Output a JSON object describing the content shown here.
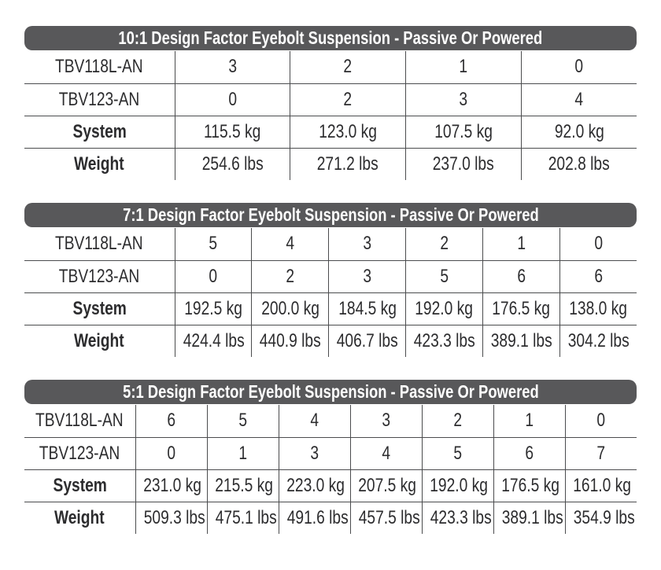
{
  "page": {
    "header_bar_color": "#58585a",
    "header_text_color": "#ffffff",
    "grid_line_color": "#4b4c4e",
    "text_color": "#2c2c2e"
  },
  "tables": [
    {
      "title": "10:1 Design Factor Eyebolt Suspension - Passive Or Powered",
      "rows": [
        {
          "label": "TBV118L-AN",
          "values": [
            "3",
            "2",
            "1",
            "0"
          ]
        },
        {
          "label": "TBV123-AN",
          "values": [
            "0",
            "2",
            "3",
            "4"
          ]
        },
        {
          "label": "System",
          "values": [
            "115.5 kg",
            "123.0 kg",
            "107.5 kg",
            "92.0 kg"
          ]
        },
        {
          "label": "Weight",
          "values": [
            "254.6 lbs",
            "271.2 lbs",
            "237.0 lbs",
            "202.8 lbs"
          ]
        }
      ]
    },
    {
      "title": "7:1 Design Factor Eyebolt Suspension - Passive Or Powered",
      "rows": [
        {
          "label": "TBV118L-AN",
          "values": [
            "5",
            "4",
            "3",
            "2",
            "1",
            "0"
          ]
        },
        {
          "label": "TBV123-AN",
          "values": [
            "0",
            "2",
            "3",
            "5",
            "6",
            "6"
          ]
        },
        {
          "label": "System",
          "values": [
            "192.5 kg",
            "200.0 kg",
            "184.5 kg",
            "192.0 kg",
            "176.5 kg",
            "138.0 kg"
          ]
        },
        {
          "label": "Weight",
          "values": [
            "424.4 lbs",
            "440.9 lbs",
            "406.7 lbs",
            "423.3 lbs",
            "389.1 lbs",
            "304.2 lbs"
          ]
        }
      ]
    },
    {
      "title": "5:1 Design Factor Eyebolt Suspension - Passive Or Powered",
      "rows": [
        {
          "label": "TBV118L-AN",
          "values": [
            "6",
            "5",
            "4",
            "3",
            "2",
            "1",
            "0"
          ]
        },
        {
          "label": "TBV123-AN",
          "values": [
            "0",
            "1",
            "3",
            "4",
            "5",
            "6",
            "7"
          ]
        },
        {
          "label": "System",
          "values": [
            "231.0 kg",
            "215.5 kg",
            "223.0 kg",
            "207.5 kg",
            "192.0 kg",
            "176.5 kg",
            "161.0 kg"
          ]
        },
        {
          "label": "Weight",
          "values": [
            "509.3 lbs",
            "475.1 lbs",
            "491.6 lbs",
            "457.5 lbs",
            "423.3 lbs",
            "389.1 lbs",
            "354.9 lbs"
          ]
        }
      ]
    }
  ]
}
